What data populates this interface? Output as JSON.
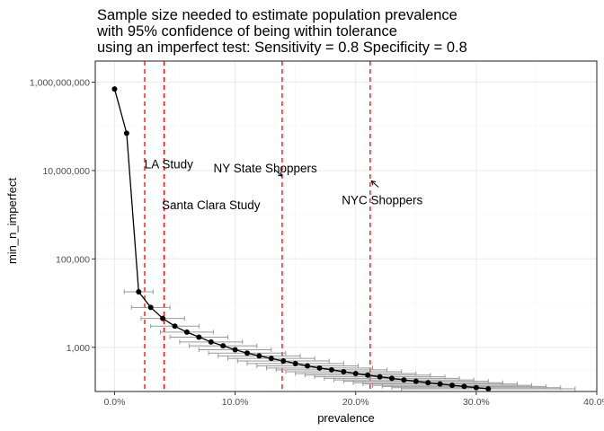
{
  "chart_data": {
    "type": "line",
    "title_lines": [
      "Sample size needed to estimate population prevalence",
      "with 95% confidence of being within tolerance",
      "using an imperfect test: Sensitivity = 0.8 Specificity = 0.8"
    ],
    "xlabel": "prevalence",
    "ylabel": "min_n_imperfect",
    "x_scale": "linear",
    "y_scale": "log10",
    "xlim": [
      -0.016,
      0.4
    ],
    "ylim": [
      100,
      3000000000
    ],
    "x_ticks": [
      0,
      0.1,
      0.2,
      0.3,
      0.4
    ],
    "x_tick_labels": [
      "0.0%",
      "10.0%",
      "20.0%",
      "30.0%",
      "40.0%"
    ],
    "y_ticks": [
      1000,
      100000,
      10000000,
      1000000000
    ],
    "y_tick_labels": [
      "1,000",
      "100,000",
      "10,000,000",
      "1,000,000,000"
    ],
    "grid": true,
    "legend": "none",
    "series": [
      {
        "x": [
          0.0,
          0.01,
          0.02,
          0.03,
          0.04,
          0.05,
          0.06,
          0.07,
          0.08,
          0.09,
          0.1,
          0.11,
          0.12,
          0.13,
          0.14,
          0.15,
          0.16,
          0.17,
          0.18,
          0.19,
          0.2,
          0.21,
          0.22,
          0.23,
          0.24,
          0.25,
          0.26,
          0.27,
          0.28,
          0.29,
          0.3,
          0.31
        ],
        "y": [
          700000000,
          70000000,
          18000,
          8000,
          4500,
          3000,
          2200,
          1700,
          1320,
          1080,
          880,
          740,
          640,
          560,
          490,
          430,
          380,
          340,
          310,
          280,
          255,
          235,
          215,
          198,
          183,
          170,
          158,
          148,
          138,
          130,
          122,
          115
        ],
        "xerr_low": [
          0.0,
          0.0,
          0.012,
          0.016,
          0.018,
          0.02,
          0.022,
          0.024,
          0.026,
          0.028,
          0.03,
          0.032,
          0.034,
          0.036,
          0.038,
          0.04,
          0.042,
          0.044,
          0.046,
          0.048,
          0.05,
          0.052,
          0.054,
          0.056,
          0.058,
          0.06,
          0.062,
          0.064,
          0.066,
          0.068,
          0.07,
          0.072
        ],
        "xerr_high": [
          0.0,
          0.0,
          0.012,
          0.016,
          0.018,
          0.02,
          0.022,
          0.024,
          0.026,
          0.028,
          0.03,
          0.032,
          0.034,
          0.036,
          0.038,
          0.04,
          0.042,
          0.044,
          0.046,
          0.048,
          0.05,
          0.052,
          0.054,
          0.056,
          0.058,
          0.06,
          0.062,
          0.064,
          0.066,
          0.068,
          0.07,
          0.072
        ]
      }
    ],
    "vlines": [
      {
        "x": 0.025,
        "label": "LA Study"
      },
      {
        "x": 0.041,
        "label": "Santa Clara Study"
      },
      {
        "x": 0.139,
        "label": "NY State Shoppers"
      },
      {
        "x": 0.212,
        "label": "NYC Shoppers"
      }
    ],
    "annotations": [
      {
        "text": "LA Study",
        "x": 0.045,
        "y": 14000000
      },
      {
        "text": "Santa Clara Study",
        "x": 0.08,
        "y": 1700000
      },
      {
        "text": "NY State Shoppers",
        "x": 0.125,
        "y": 11500000,
        "arrow_to": [
          0.139,
          7500000
        ]
      },
      {
        "text": "NYC Shoppers",
        "x": 0.222,
        "y": 2200000,
        "arrow_to": [
          0.213,
          5800000
        ]
      }
    ],
    "colors": {
      "line": "#000000",
      "points": "#000000",
      "errorbar": "#999999",
      "vline": "#ff0000",
      "grid_major": "#ebebeb",
      "grid_minor": "#f5f5f5",
      "panel_border": "#333333"
    }
  }
}
